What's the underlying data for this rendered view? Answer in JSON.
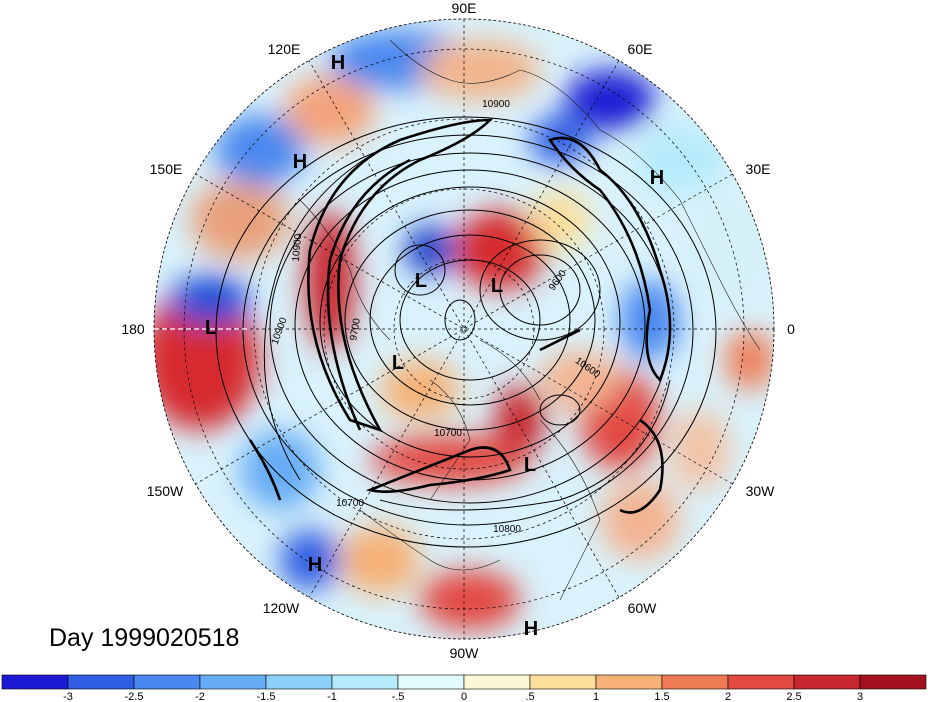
{
  "map": {
    "title": "Day 1999020518",
    "projection": "north-polar-stereographic",
    "longitude_labels": [
      "90E",
      "60E",
      "30E",
      "0",
      "30W",
      "60W",
      "90W",
      "120W",
      "150W",
      "180",
      "150E",
      "120E"
    ],
    "pressure_systems": [
      {
        "label": "H",
        "name": "high-120e"
      },
      {
        "label": "H",
        "name": "high-150e"
      },
      {
        "label": "H",
        "name": "high-30e"
      },
      {
        "label": "H",
        "name": "high-120w"
      },
      {
        "label": "H",
        "name": "high-90w"
      },
      {
        "label": "L",
        "name": "low-180"
      },
      {
        "label": "L",
        "name": "low-siberia"
      },
      {
        "label": "L",
        "name": "low-arctic"
      },
      {
        "label": "L",
        "name": "low-alaska"
      },
      {
        "label": "L",
        "name": "low-labrador"
      }
    ],
    "contour_labels": [
      "10900",
      "10900",
      "10900",
      "9700",
      "9600",
      "10600",
      "10700",
      "10800",
      "10700"
    ]
  },
  "colorbar": {
    "ticks": [
      "-3",
      "-2.5",
      "-2",
      "-1.5",
      "-1",
      "-.5",
      "0",
      ".5",
      "1",
      "1.5",
      "2",
      "2.5",
      "3"
    ],
    "colors": [
      "#1c1ad4",
      "#2f5de3",
      "#4a88ef",
      "#66acf5",
      "#8ccff9",
      "#b5ebfb",
      "#e3fbfd",
      "#fdf7d8",
      "#fbdf9a",
      "#f6b176",
      "#ef7b55",
      "#e24942",
      "#c7262f",
      "#a3111e"
    ]
  }
}
